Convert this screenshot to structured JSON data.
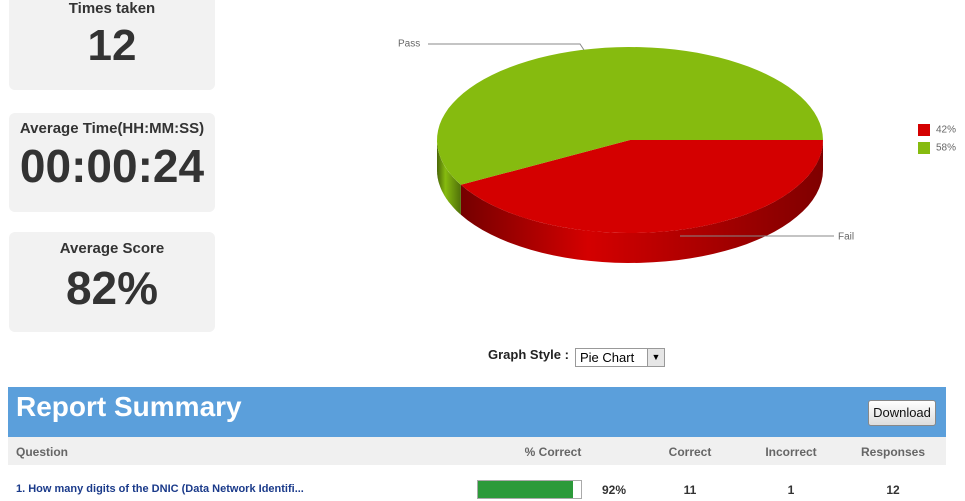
{
  "stats": [
    {
      "label": "Times taken",
      "value": "12"
    },
    {
      "label": "Average Time(HH:MM:SS)",
      "value": "00:00:24"
    },
    {
      "label": "Average Score",
      "value": "82%"
    }
  ],
  "chart_data": {
    "type": "pie",
    "categories": [
      "Fail",
      "Pass"
    ],
    "values": [
      42,
      58
    ],
    "value_labels": [
      "42%",
      "58%"
    ],
    "colors": [
      "#d40000",
      "#86bb0f"
    ]
  },
  "graph_style": {
    "label": "Graph Style :",
    "selected": "Pie Chart"
  },
  "report": {
    "title": "Report Summary",
    "download": "Download",
    "columns": [
      "Question",
      "% Correct",
      "Correct",
      "Incorrect",
      "Responses"
    ],
    "rows": [
      {
        "question": "1.  How many digits of the DNIC (Data Network Identifi...",
        "percent_correct": 92,
        "percent_label": "92%",
        "correct": "11",
        "incorrect": "1",
        "responses": "12"
      }
    ]
  }
}
